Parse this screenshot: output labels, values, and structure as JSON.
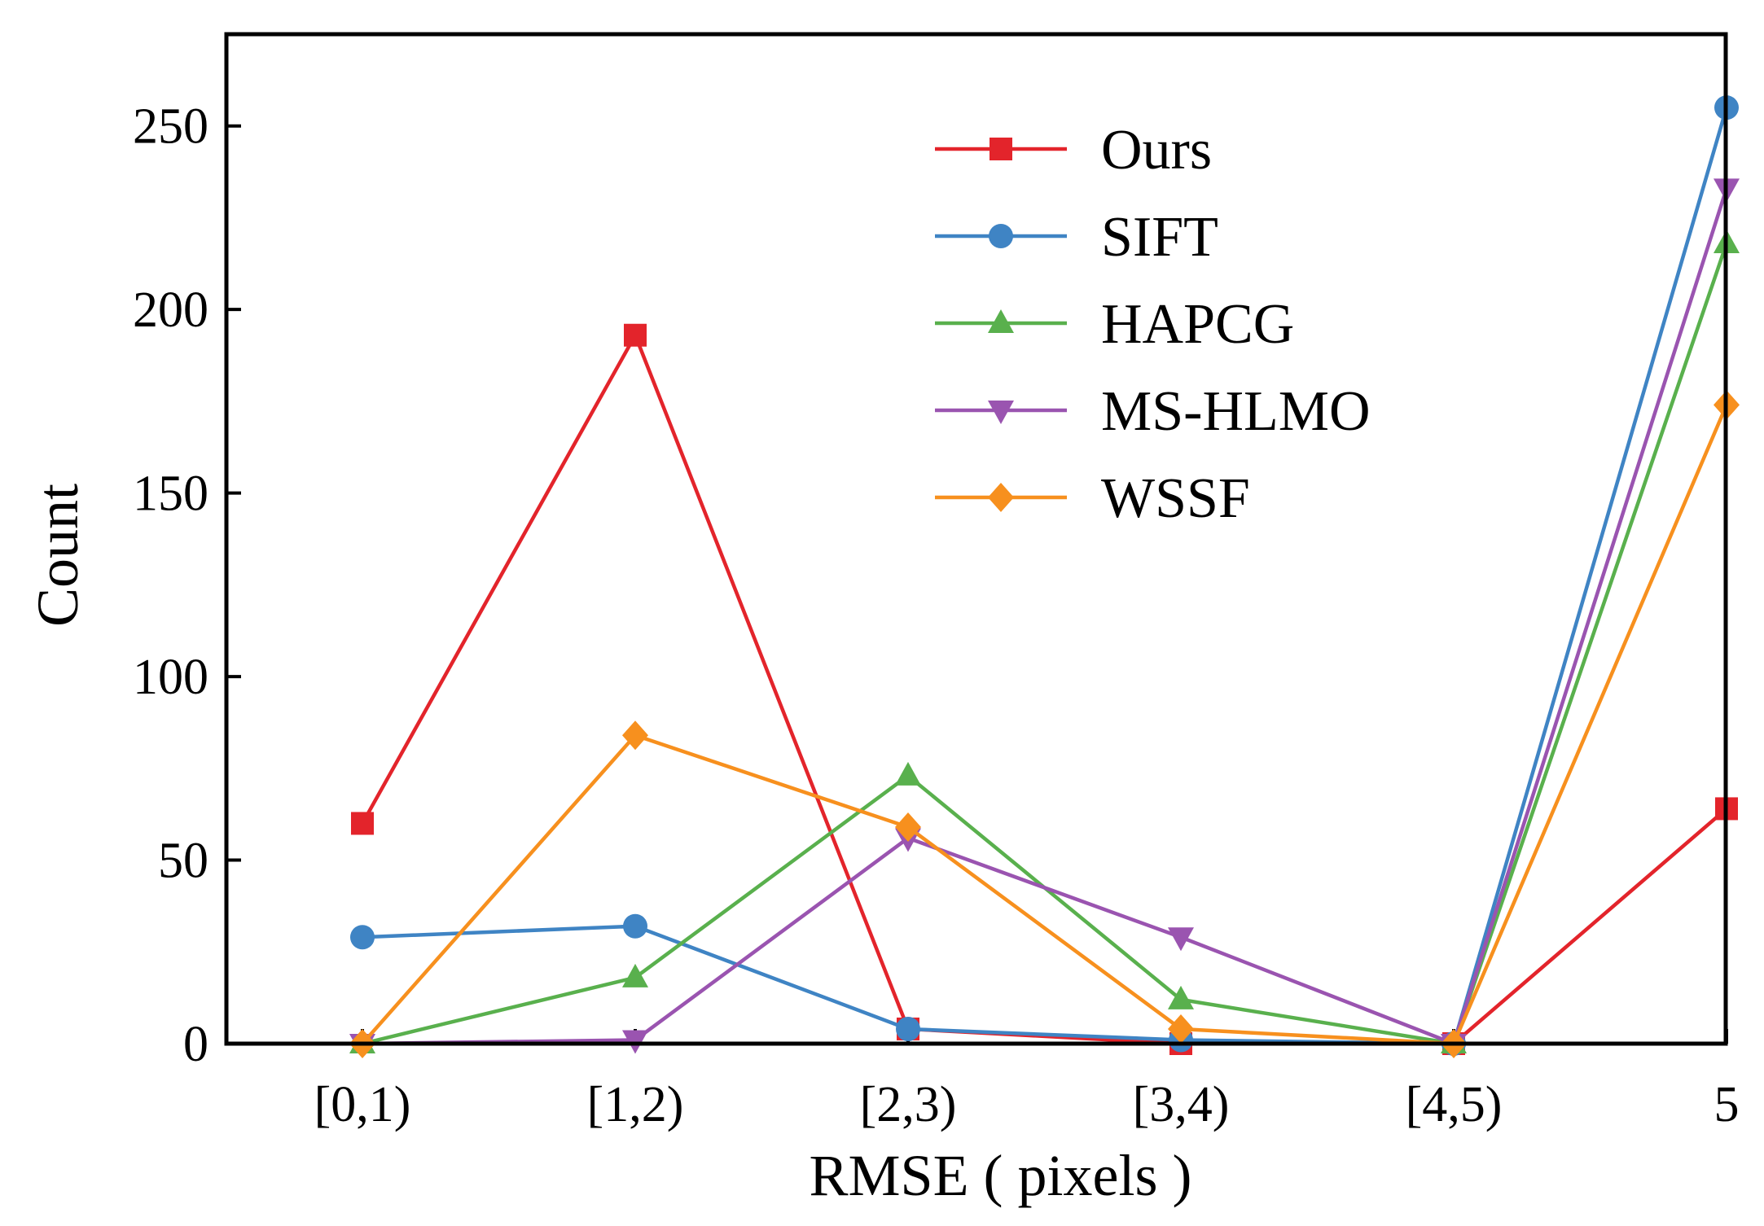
{
  "chart_data": {
    "type": "line",
    "title": "",
    "xlabel": "RMSE ( pixels )",
    "ylabel": "Count",
    "categories": [
      "[0,1)",
      "[1,2)",
      "[2,3)",
      "[3,4)",
      "[4,5)",
      "5"
    ],
    "ylim": [
      0,
      275
    ],
    "yticks": [
      0,
      50,
      100,
      150,
      200,
      250
    ],
    "grid": false,
    "legend_position": "top-right",
    "series": [
      {
        "name": "Ours",
        "color": "#e3242b",
        "marker": "square",
        "values": [
          60,
          193,
          4,
          0,
          0,
          64
        ]
      },
      {
        "name": "SIFT",
        "color": "#3f84c4",
        "marker": "circle",
        "values": [
          29,
          32,
          4,
          1,
          0,
          255
        ]
      },
      {
        "name": "HAPCG",
        "color": "#59b04d",
        "marker": "triangle-up",
        "values": [
          0,
          18,
          73,
          12,
          0,
          218
        ]
      },
      {
        "name": "MS-HLMO",
        "color": "#9a54b0",
        "marker": "triangle-down",
        "values": [
          0,
          1,
          56,
          29,
          0,
          233
        ]
      },
      {
        "name": "WSSF",
        "color": "#f7901e",
        "marker": "diamond",
        "values": [
          0,
          84,
          59,
          4,
          0,
          174
        ]
      }
    ]
  }
}
